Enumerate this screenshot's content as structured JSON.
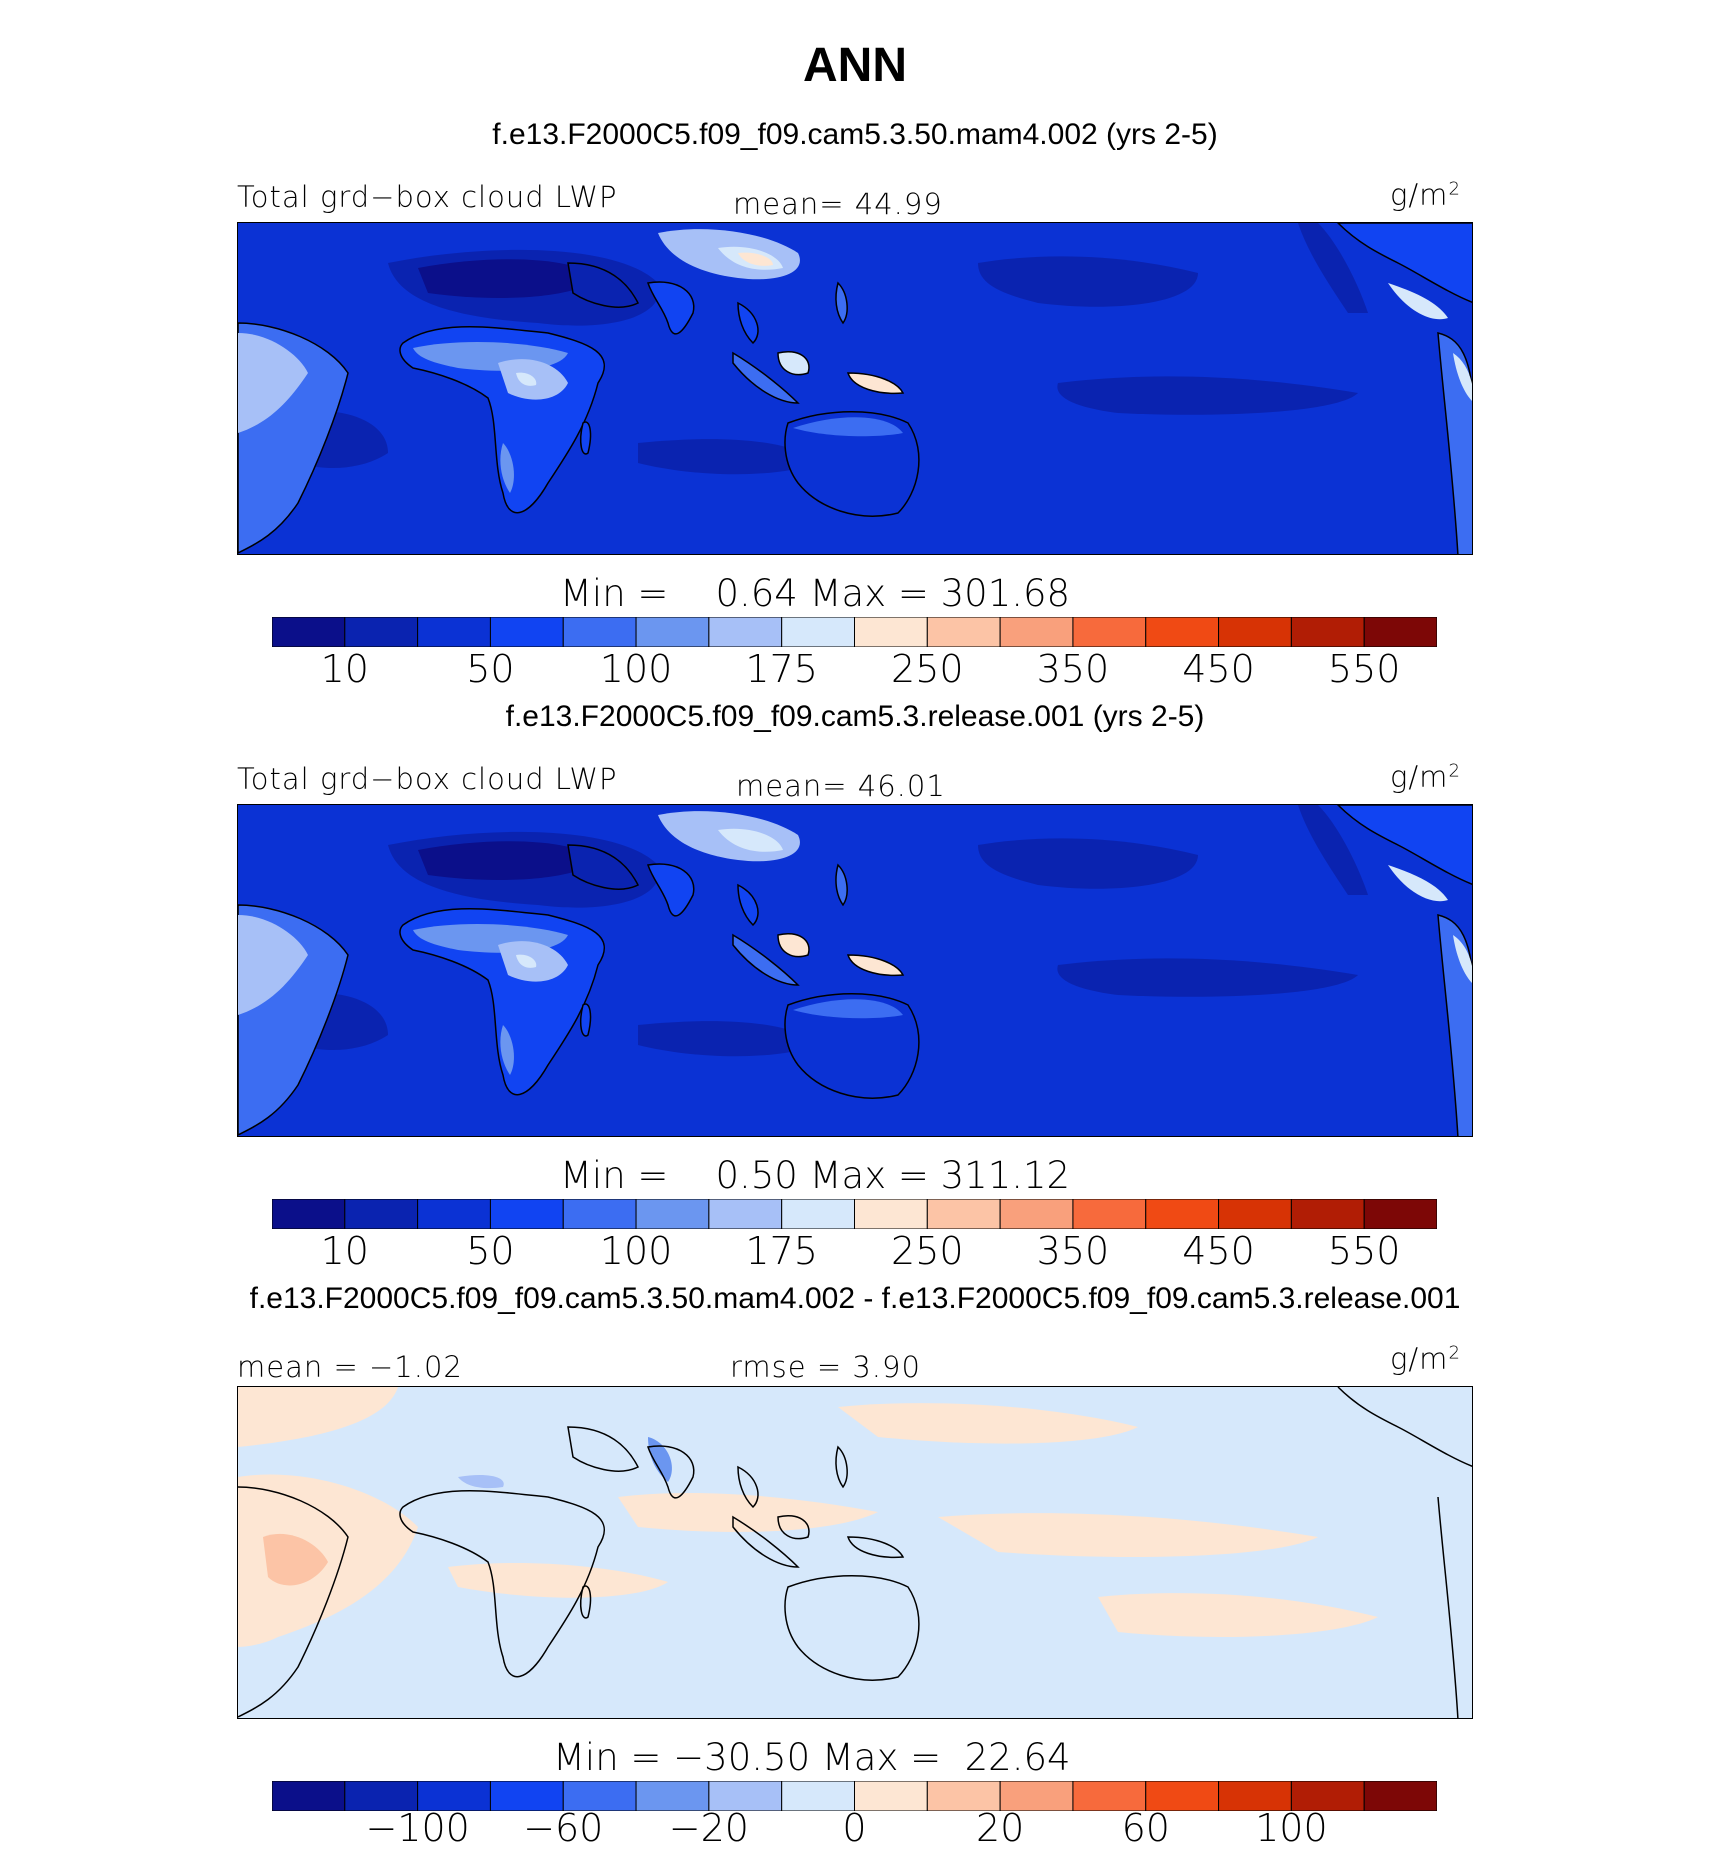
{
  "title": "ANN",
  "colors": {
    "main_palette": [
      "#0b0f8a",
      "#0a23b0",
      "#0b32d4",
      "#1144f2",
      "#3c6df2",
      "#6b96f0",
      "#a7c0f7",
      "#d6e8fb",
      "#fde6d3",
      "#fcc4a6",
      "#f9a07c",
      "#f76a3c",
      "#f04a14",
      "#d73305",
      "#b11d05",
      "#7d0706"
    ],
    "diff_palette": [
      "#0b0f8a",
      "#0a23b0",
      "#0b32d4",
      "#1144f2",
      "#3c6df2",
      "#6b96f0",
      "#a7c0f7",
      "#d6e8fb",
      "#fde6d3",
      "#fcc4a6",
      "#f9a07c",
      "#f76a3c",
      "#f04a14",
      "#d73305",
      "#b11d05",
      "#7d0706"
    ],
    "land_outline": "#000000"
  },
  "panels": [
    {
      "case_title": "f.e13.F2000C5.f09_f09.cam5.3.50.mam4.002 (yrs 2-5)",
      "left_label": "Total grd−box cloud LWP",
      "center_label": "mean=  44.99",
      "units_base": "g/m",
      "units_exp": "2",
      "minmax": "Min =    0.64 Max = 301.68"
    },
    {
      "case_title": "f.e13.F2000C5.f09_f09.cam5.3.release.001 (yrs 2-5)",
      "left_label": "Total grd−box cloud LWP",
      "center_label": "mean=  46.01",
      "units_base": "g/m",
      "units_exp": "2",
      "minmax": "Min =    0.50 Max = 311.12"
    },
    {
      "case_title": "f.e13.F2000C5.f09_f09.cam5.3.50.mam4.002 - f.e13.F2000C5.f09_f09.cam5.3.release.001",
      "left_label": "mean =  −1.02",
      "center_label": "rmse =    3.90",
      "units_base": "g/m",
      "units_exp": "2",
      "minmax": "Min = −30.50 Max =  22.64"
    }
  ],
  "chart_data": [
    {
      "type": "heatmap",
      "title": "f.e13.F2000C5.f09_f09.cam5.3.50.mam4.002 (yrs 2-5)",
      "variable": "Total grd−box cloud LWP",
      "units": "g/m2",
      "mean": 44.99,
      "min": 0.64,
      "max": 301.68,
      "colorbar_levels": [
        10,
        25,
        50,
        75,
        100,
        125,
        150,
        175,
        200,
        250,
        300,
        350,
        400,
        450,
        500,
        550,
        600
      ],
      "colorbar_tick_labels": [
        "10",
        "50",
        "100",
        "175",
        "250",
        "350",
        "450",
        "550"
      ]
    },
    {
      "type": "heatmap",
      "title": "f.e13.F2000C5.f09_f09.cam5.3.release.001 (yrs 2-5)",
      "variable": "Total grd−box cloud LWP",
      "units": "g/m2",
      "mean": 46.01,
      "min": 0.5,
      "max": 311.12,
      "colorbar_levels": [
        10,
        25,
        50,
        75,
        100,
        125,
        150,
        175,
        200,
        250,
        300,
        350,
        400,
        450,
        500,
        550,
        600
      ],
      "colorbar_tick_labels": [
        "10",
        "50",
        "100",
        "175",
        "250",
        "350",
        "450",
        "550"
      ]
    },
    {
      "type": "heatmap",
      "title": "f.e13.F2000C5.f09_f09.cam5.3.50.mam4.002 - f.e13.F2000C5.f09_f09.cam5.3.release.001",
      "variable": "difference",
      "units": "g/m2",
      "mean": -1.02,
      "rmse": 3.9,
      "min": -30.5,
      "max": 22.64,
      "colorbar_tick_labels": [
        "−100",
        "−60",
        "−20",
        "0",
        "20",
        "60",
        "100"
      ]
    }
  ]
}
